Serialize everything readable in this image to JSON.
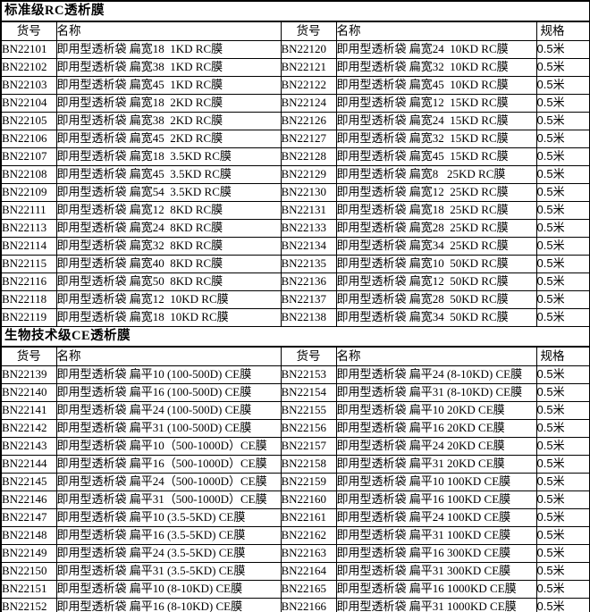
{
  "sections": [
    {
      "title": "标准级RC透析膜",
      "headers": {
        "code": "货号",
        "name": "名称",
        "spec": "规格"
      },
      "rows": [
        {
          "left_code": "BN22101",
          "left_name": "即用型透析袋 扁宽18  1KD RC膜",
          "right_code": "BN22120",
          "right_name": "即用型透析袋 扁宽24  10KD RC膜",
          "spec": "0.5米"
        },
        {
          "left_code": "BN22102",
          "left_name": "即用型透析袋 扁宽38  1KD RC膜",
          "right_code": "BN22121",
          "right_name": "即用型透析袋 扁宽32  10KD RC膜",
          "spec": "0.5米"
        },
        {
          "left_code": "BN22103",
          "left_name": "即用型透析袋 扁宽45  1KD RC膜",
          "right_code": "BN22122",
          "right_name": "即用型透析袋 扁宽45  10KD RC膜",
          "spec": "0.5米"
        },
        {
          "left_code": "BN22104",
          "left_name": "即用型透析袋 扁宽18  2KD RC膜",
          "right_code": "BN22124",
          "right_name": "即用型透析袋 扁宽12  15KD RC膜",
          "spec": "0.5米"
        },
        {
          "left_code": "BN22105",
          "left_name": "即用型透析袋 扁宽38  2KD RC膜",
          "right_code": "BN22126",
          "right_name": "即用型透析袋 扁宽24  15KD RC膜",
          "spec": "0.5米"
        },
        {
          "left_code": "BN22106",
          "left_name": "即用型透析袋 扁宽45  2KD RC膜",
          "right_code": "BN22127",
          "right_name": "即用型透析袋 扁宽32  15KD RC膜",
          "spec": "0.5米"
        },
        {
          "left_code": "BN22107",
          "left_name": "即用型透析袋 扁宽18  3.5KD RC膜",
          "right_code": "BN22128",
          "right_name": "即用型透析袋 扁宽45  15KD RC膜",
          "spec": "0.5米"
        },
        {
          "left_code": "BN22108",
          "left_name": "即用型透析袋 扁宽45  3.5KD RC膜",
          "right_code": "BN22129",
          "right_name": "即用型透析袋 扁宽8   25KD RC膜",
          "spec": "0.5米"
        },
        {
          "left_code": "BN22109",
          "left_name": "即用型透析袋 扁宽54  3.5KD RC膜",
          "right_code": "BN22130",
          "right_name": "即用型透析袋 扁宽12  25KD RC膜",
          "spec": "0.5米"
        },
        {
          "left_code": "BN22111",
          "left_name": "即用型透析袋 扁宽12  8KD RC膜",
          "right_code": "BN22131",
          "right_name": "即用型透析袋 扁宽18  25KD RC膜",
          "spec": "0.5米"
        },
        {
          "left_code": "BN22113",
          "left_name": "即用型透析袋 扁宽24  8KD RC膜",
          "right_code": "BN22133",
          "right_name": "即用型透析袋 扁宽28  25KD RC膜",
          "spec": "0.5米"
        },
        {
          "left_code": "BN22114",
          "left_name": "即用型透析袋 扁宽32  8KD RC膜",
          "right_code": "BN22134",
          "right_name": "即用型透析袋 扁宽34  25KD RC膜",
          "spec": "0.5米"
        },
        {
          "left_code": "BN22115",
          "left_name": "即用型透析袋 扁宽40  8KD RC膜",
          "right_code": "BN22135",
          "right_name": "即用型透析袋 扁宽10  50KD RC膜",
          "spec": "0.5米"
        },
        {
          "left_code": "BN22116",
          "left_name": "即用型透析袋 扁宽50  8KD RC膜",
          "right_code": "BN22136",
          "right_name": "即用型透析袋 扁宽12  50KD RC膜",
          "spec": "0.5米"
        },
        {
          "left_code": "BN22118",
          "left_name": "即用型透析袋 扁宽12  10KD RC膜",
          "right_code": "BN22137",
          "right_name": "即用型透析袋 扁宽28  50KD RC膜",
          "spec": "0.5米"
        },
        {
          "left_code": "BN22119",
          "left_name": "即用型透析袋 扁宽18  10KD RC膜",
          "right_code": "BN22138",
          "right_name": "即用型透析袋 扁宽34  50KD RC膜",
          "spec": "0.5米"
        }
      ]
    },
    {
      "title": "生物技术级CE透析膜",
      "headers": {
        "code": "货号",
        "name": "名称",
        "spec": "规格"
      },
      "rows": [
        {
          "left_code": "BN22139",
          "left_name": "即用型透析袋 扁平10 (100-500D) CE膜",
          "right_code": "BN22153",
          "right_name": "即用型透析袋 扁平24 (8-10KD) CE膜",
          "spec": "0.5米"
        },
        {
          "left_code": "BN22140",
          "left_name": "即用型透析袋 扁平16 (100-500D) CE膜",
          "right_code": "BN22154",
          "right_name": "即用型透析袋 扁平31 (8-10KD) CE膜",
          "spec": "0.5米"
        },
        {
          "left_code": "BN22141",
          "left_name": "即用型透析袋 扁平24 (100-500D) CE膜",
          "right_code": "BN22155",
          "right_name": "即用型透析袋 扁平10 20KD CE膜",
          "spec": "0.5米"
        },
        {
          "left_code": "BN22142",
          "left_name": "即用型透析袋 扁平31 (100-500D) CE膜",
          "right_code": "BN22156",
          "right_name": "即用型透析袋 扁平16 20KD CE膜",
          "spec": "0.5米"
        },
        {
          "left_code": "BN22143",
          "left_name": "即用型透析袋 扁平10（500-1000D）CE膜",
          "right_code": "BN22157",
          "right_name": "即用型透析袋 扁平24 20KD CE膜",
          "spec": "0.5米"
        },
        {
          "left_code": "BN22144",
          "left_name": "即用型透析袋 扁平16（500-1000D）CE膜",
          "right_code": "BN22158",
          "right_name": "即用型透析袋 扁平31 20KD CE膜",
          "spec": "0.5米"
        },
        {
          "left_code": "BN22145",
          "left_name": "即用型透析袋 扁平24（500-1000D）CE膜",
          "right_code": "BN22159",
          "right_name": "即用型透析袋 扁平10 100KD CE膜",
          "spec": "0.5米"
        },
        {
          "left_code": "BN22146",
          "left_name": "即用型透析袋 扁平31（500-1000D）CE膜",
          "right_code": "BN22160",
          "right_name": "即用型透析袋 扁平16 100KD CE膜",
          "spec": "0.5米"
        },
        {
          "left_code": "BN22147",
          "left_name": "即用型透析袋 扁平10 (3.5-5KD) CE膜",
          "right_code": "BN22161",
          "right_name": "即用型透析袋 扁平24 100KD CE膜",
          "spec": "0.5米"
        },
        {
          "left_code": "BN22148",
          "left_name": "即用型透析袋 扁平16 (3.5-5KD) CE膜",
          "right_code": "BN22162",
          "right_name": "即用型透析袋 扁平31 100KD CE膜",
          "spec": "0.5米"
        },
        {
          "left_code": "BN22149",
          "left_name": "即用型透析袋 扁平24 (3.5-5KD) CE膜",
          "right_code": "BN22163",
          "right_name": "即用型透析袋 扁平16 300KD CE膜",
          "spec": "0.5米"
        },
        {
          "left_code": "BN22150",
          "left_name": "即用型透析袋 扁平31 (3.5-5KD) CE膜",
          "right_code": "BN22164",
          "right_name": "即用型透析袋 扁平31 300KD CE膜",
          "spec": "0.5米"
        },
        {
          "left_code": "BN22151",
          "left_name": "即用型透析袋 扁平10 (8-10KD) CE膜",
          "right_code": "BN22165",
          "right_name": "即用型透析袋 扁平16 1000KD CE膜",
          "spec": "0.5米"
        },
        {
          "left_code": "BN22152",
          "left_name": "即用型透析袋 扁平16 (8-10KD) CE膜",
          "right_code": "BN22166",
          "right_name": "即用型透析袋 扁平31 1000KD CE膜",
          "spec": "0.5米"
        }
      ]
    }
  ]
}
